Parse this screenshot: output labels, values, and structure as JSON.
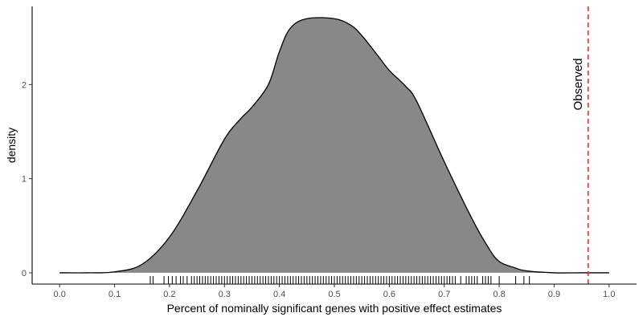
{
  "chart_data": {
    "type": "area",
    "xlabel": "Percent of nominally significant genes with positive effect estimates",
    "ylabel": "density",
    "xlim": [
      -0.05,
      1.05
    ],
    "ylim": [
      -0.12,
      2.83
    ],
    "x_ticks": [
      "0.0",
      "0.1",
      "0.2",
      "0.3",
      "0.4",
      "0.5",
      "0.6",
      "0.7",
      "0.8",
      "0.9",
      "1.0"
    ],
    "y_ticks": [
      "0",
      "1",
      "2"
    ],
    "grid": false,
    "legend": "none",
    "colors": {
      "fill": "#888888",
      "outline": "#000000",
      "observed_line": "#ff2a2a"
    },
    "density_curve": {
      "x": [
        0.0,
        0.05,
        0.1,
        0.15,
        0.2,
        0.25,
        0.3,
        0.33,
        0.35,
        0.38,
        0.4,
        0.42,
        0.45,
        0.5,
        0.53,
        0.55,
        0.58,
        0.6,
        0.63,
        0.65,
        0.7,
        0.75,
        0.78,
        0.8,
        0.83,
        0.85,
        0.9,
        0.95,
        1.0
      ],
      "y": [
        0.0,
        0.0,
        0.01,
        0.09,
        0.38,
        0.87,
        1.42,
        1.64,
        1.76,
        2.0,
        2.35,
        2.6,
        2.7,
        2.7,
        2.63,
        2.52,
        2.3,
        2.15,
        1.98,
        1.82,
        1.18,
        0.58,
        0.27,
        0.12,
        0.05,
        0.02,
        0.0,
        0.0,
        0.0
      ]
    },
    "rug_x": [
      0.165,
      0.17,
      0.19,
      0.198,
      0.205,
      0.212,
      0.22,
      0.225,
      0.232,
      0.24,
      0.245,
      0.25,
      0.255,
      0.26,
      0.265,
      0.27,
      0.275,
      0.28,
      0.285,
      0.29,
      0.295,
      0.3,
      0.305,
      0.31,
      0.315,
      0.32,
      0.325,
      0.33,
      0.335,
      0.34,
      0.345,
      0.35,
      0.355,
      0.36,
      0.365,
      0.37,
      0.375,
      0.38,
      0.385,
      0.39,
      0.395,
      0.4,
      0.405,
      0.41,
      0.415,
      0.42,
      0.425,
      0.43,
      0.435,
      0.44,
      0.445,
      0.45,
      0.455,
      0.46,
      0.465,
      0.47,
      0.475,
      0.48,
      0.485,
      0.49,
      0.495,
      0.5,
      0.505,
      0.51,
      0.515,
      0.52,
      0.525,
      0.53,
      0.535,
      0.54,
      0.545,
      0.55,
      0.555,
      0.56,
      0.565,
      0.57,
      0.575,
      0.58,
      0.585,
      0.59,
      0.595,
      0.6,
      0.605,
      0.61,
      0.615,
      0.62,
      0.625,
      0.63,
      0.635,
      0.64,
      0.645,
      0.65,
      0.655,
      0.66,
      0.665,
      0.67,
      0.675,
      0.68,
      0.685,
      0.69,
      0.695,
      0.7,
      0.705,
      0.71,
      0.715,
      0.72,
      0.73,
      0.74,
      0.745,
      0.75,
      0.755,
      0.76,
      0.77,
      0.775,
      0.78,
      0.785,
      0.8,
      0.83,
      0.845,
      0.855
    ],
    "observed": {
      "x": 0.962,
      "label": "Observed"
    }
  }
}
